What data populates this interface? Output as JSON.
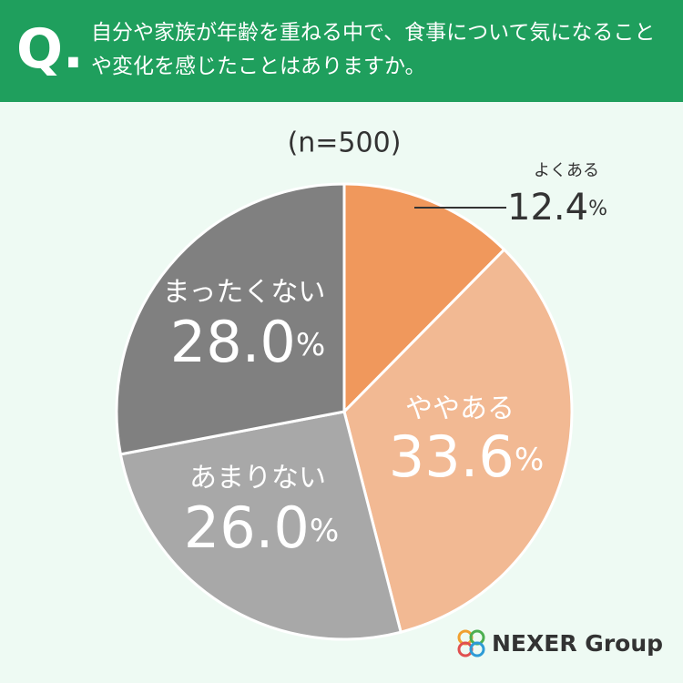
{
  "chart_data": {
    "type": "pie",
    "question_mark": "Q.",
    "title": "自分や家族が年齢を重ねる中で、食事について気になることや変化を感じたことはありますか。",
    "subtitle": "(n=500)",
    "categories": [
      "よくある",
      "ややある",
      "あまりない",
      "まったくない"
    ],
    "values": [
      12.4,
      33.6,
      26.0,
      28.0
    ],
    "value_labels": [
      "12.4%",
      "33.6%",
      "26.0%",
      "28.0%"
    ],
    "colors": [
      "#f0985c",
      "#f2b993",
      "#a8a8a8",
      "#808080"
    ],
    "brand": "NEXER Group"
  }
}
